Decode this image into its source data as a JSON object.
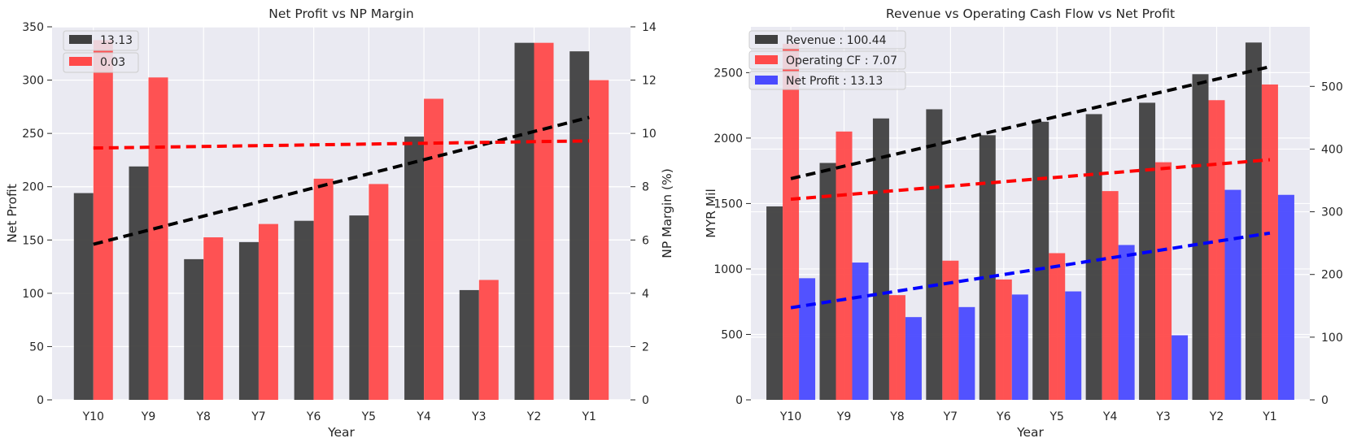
{
  "chart_data": [
    {
      "type": "bar",
      "title": "Net Profit vs NP Margin",
      "xlabel": "Year",
      "ylabel": "Net Profit",
      "y2label": "NP Margin (%)",
      "categories": [
        "Y10",
        "Y9",
        "Y8",
        "Y7",
        "Y6",
        "Y5",
        "Y4",
        "Y3",
        "Y2",
        "Y1"
      ],
      "ylim": [
        0,
        350
      ],
      "yticks": [
        0,
        50,
        100,
        150,
        200,
        250,
        300,
        350
      ],
      "y2lim": [
        0,
        14
      ],
      "y2ticks": [
        0,
        2,
        4,
        6,
        8,
        10,
        12,
        14
      ],
      "grid": true,
      "legend_position": "top-left",
      "series": [
        {
          "name": "13.13",
          "axis": "left",
          "color": "#404040",
          "values": [
            194,
            219,
            132,
            148,
            168,
            173,
            247,
            103,
            335,
            327
          ]
        },
        {
          "name": "0.03",
          "axis": "right",
          "color": "#ff4a4a",
          "values": [
            13.5,
            12.1,
            6.1,
            6.6,
            8.3,
            8.1,
            11.3,
            4.5,
            13.4,
            12.0
          ]
        }
      ],
      "trendlines": [
        {
          "axis": "left",
          "color": "#000000",
          "start": 146,
          "end": 265
        },
        {
          "axis": "right",
          "color": "#ff0000",
          "start": 9.45,
          "end": 9.72
        }
      ]
    },
    {
      "type": "bar",
      "title": "Revenue vs Operating Cash Flow vs Net Profit",
      "xlabel": "Year",
      "ylabel": "MYR Mil",
      "categories": [
        "Y10",
        "Y9",
        "Y8",
        "Y7",
        "Y6",
        "Y5",
        "Y4",
        "Y3",
        "Y2",
        "Y1"
      ],
      "ylim": [
        0,
        2850
      ],
      "yticks": [
        0,
        500,
        1000,
        1500,
        2000,
        2500
      ],
      "y2lim": [
        0,
        595
      ],
      "y2ticks": [
        0,
        100,
        200,
        300,
        400,
        500
      ],
      "grid": true,
      "legend_position": "top-left",
      "series": [
        {
          "name": "Revenue : 100.44",
          "axis": "left",
          "color": "#404040",
          "values": [
            1478,
            1810,
            2150,
            2220,
            2022,
            2125,
            2183,
            2270,
            2488,
            2730
          ]
        },
        {
          "name": "Operating CF : 7.07",
          "axis": "right",
          "color": "#ff4a4a",
          "values": [
            568,
            428,
            167,
            222,
            192,
            234,
            333,
            379,
            478,
            503
          ]
        },
        {
          "name": "Net Profit : 13.13",
          "axis": "right",
          "color": "#4a4aff",
          "values": [
            194,
            219,
            132,
            148,
            168,
            173,
            247,
            103,
            335,
            327
          ]
        }
      ],
      "trendlines": [
        {
          "axis": "left",
          "color": "#000000",
          "start": 1690,
          "end": 2545
        },
        {
          "axis": "right",
          "color": "#ff0000",
          "start": 320,
          "end": 383
        },
        {
          "axis": "right",
          "color": "#0000ff",
          "start": 147,
          "end": 266
        }
      ]
    }
  ]
}
